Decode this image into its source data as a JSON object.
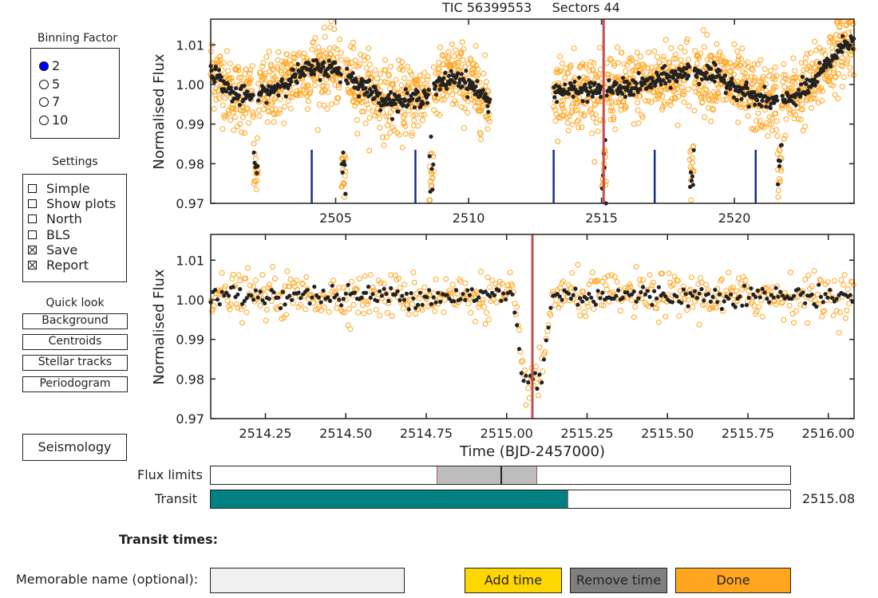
{
  "title": {
    "target": "TIC 56399553",
    "sectors": "Sectors 44"
  },
  "binning": {
    "title": "Binning Factor",
    "options": [
      "2",
      "5",
      "7",
      "10"
    ],
    "selected": 0
  },
  "settings": {
    "title": "Settings",
    "items": [
      {
        "label": "Simple",
        "checked": false
      },
      {
        "label": "Show plots",
        "checked": false
      },
      {
        "label": "North",
        "checked": false
      },
      {
        "label": "BLS",
        "checked": false
      },
      {
        "label": "Save",
        "checked": true
      },
      {
        "label": "Report",
        "checked": true
      }
    ]
  },
  "quicklook": {
    "title": "Quick look",
    "buttons": [
      "Background",
      "Centroids",
      "Stellar tracks",
      "Periodogram"
    ]
  },
  "seismology_label": "Seismology",
  "top_plot": {
    "ylabel": "Normalised Flux",
    "xlim": [
      2500.3,
      2524.5
    ],
    "ylim": [
      0.97,
      1.0165
    ],
    "xticks": [
      2505,
      2510,
      2515,
      2520
    ],
    "yticks": [
      "1.01",
      "1.00",
      "0.99",
      "0.98",
      "0.97"
    ],
    "ytick_values": [
      1.01,
      1.0,
      0.99,
      0.98,
      0.97
    ],
    "gap": [
      2510.8,
      2513.2
    ],
    "transit_markers": [
      2504.1,
      2508.0,
      2513.2,
      2517.0,
      2520.8
    ],
    "dips": [
      2502.0,
      2505.3,
      2508.6,
      2515.1,
      2518.4,
      2521.7
    ],
    "selected_time": 2515.08
  },
  "bottom_plot": {
    "ylabel": "Normalised Flux",
    "xlabel": "Time (BJD-2457000)",
    "xlim": [
      2514.08,
      2516.08
    ],
    "ylim": [
      0.97,
      1.0165
    ],
    "xticks": [
      "2514.25",
      "2514.50",
      "2514.75",
      "2515.00",
      "2515.25",
      "2515.50",
      "2515.75",
      "2516.00"
    ],
    "xtick_values": [
      2514.25,
      2514.5,
      2514.75,
      2515.0,
      2515.25,
      2515.5,
      2515.75,
      2516.0
    ],
    "yticks": [
      "1.01",
      "1.00",
      "0.99",
      "0.98",
      "0.97"
    ],
    "ytick_values": [
      1.01,
      1.0,
      0.99,
      0.98,
      0.97
    ],
    "transit_center": 2515.08,
    "transit_halfwidth": 0.06,
    "transit_depth": 0.021
  },
  "colors": {
    "raw": "#ffa51e",
    "binned": "#222222",
    "transit_line": "#c0504d",
    "marker": "#16308a",
    "teal": "#008080"
  },
  "flux_limits": {
    "label": "Flux limits",
    "low": 0.39,
    "high": 0.56,
    "mid": 0.5
  },
  "transit_slider": {
    "label": "Transit",
    "value_text": "2515.08",
    "fraction": 0.616
  },
  "transit_times_label": "Transit times:",
  "memorable": {
    "label": "Memorable name (optional):",
    "value": ""
  },
  "buttons": {
    "add": "Add time",
    "remove": "Remove time",
    "done": "Done"
  }
}
